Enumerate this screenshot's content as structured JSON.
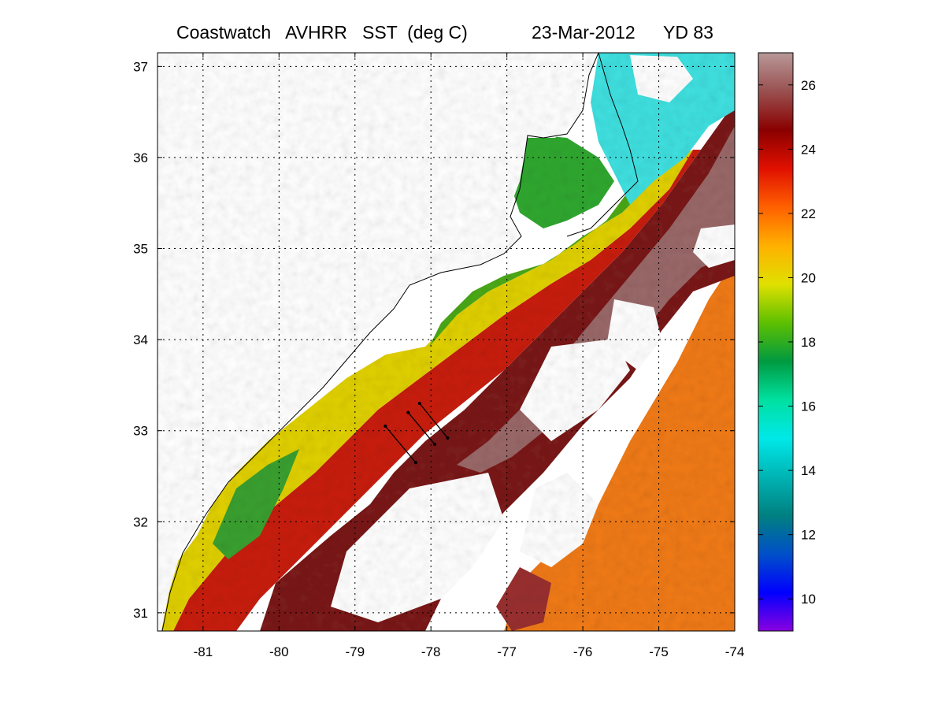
{
  "title": {
    "product": "Coastwatch   AVHRR   SST  (deg C)",
    "date": "23-Mar-2012",
    "yearday": "YD 83"
  },
  "map": {
    "lon_range": [
      -81.6,
      -74.0
    ],
    "lat_range": [
      30.8,
      37.15
    ],
    "lon_ticks": [
      "-81",
      "-80",
      "-79",
      "-78",
      "-77",
      "-76",
      "-75",
      "-74"
    ],
    "lat_ticks": [
      "37",
      "36",
      "35",
      "34",
      "33",
      "32",
      "31"
    ],
    "grid": "dotted",
    "land_color": "#ffffff",
    "cloud_color": "#ffffff",
    "coastline_color": "#000000"
  },
  "colorbar": {
    "min": 9,
    "max": 27,
    "ticks": [
      "10",
      "12",
      "14",
      "16",
      "18",
      "20",
      "22",
      "24",
      "26"
    ],
    "palette": [
      "#8a00e0",
      "#0000ff",
      "#0050c8",
      "#008080",
      "#00b4b4",
      "#00e8e8",
      "#00e0a0",
      "#009a40",
      "#5ec000",
      "#e0e000",
      "#ffb000",
      "#ff6000",
      "#e01000",
      "#8a0000",
      "#9a5050",
      "#b89898"
    ]
  },
  "transects": [
    {
      "from": [
        -78.6,
        33.05
      ],
      "to": [
        -78.2,
        32.65
      ]
    },
    {
      "from": [
        -78.3,
        33.2
      ],
      "to": [
        -77.95,
        32.85
      ]
    },
    {
      "from": [
        -78.15,
        33.3
      ],
      "to": [
        -77.78,
        32.92
      ]
    }
  ]
}
